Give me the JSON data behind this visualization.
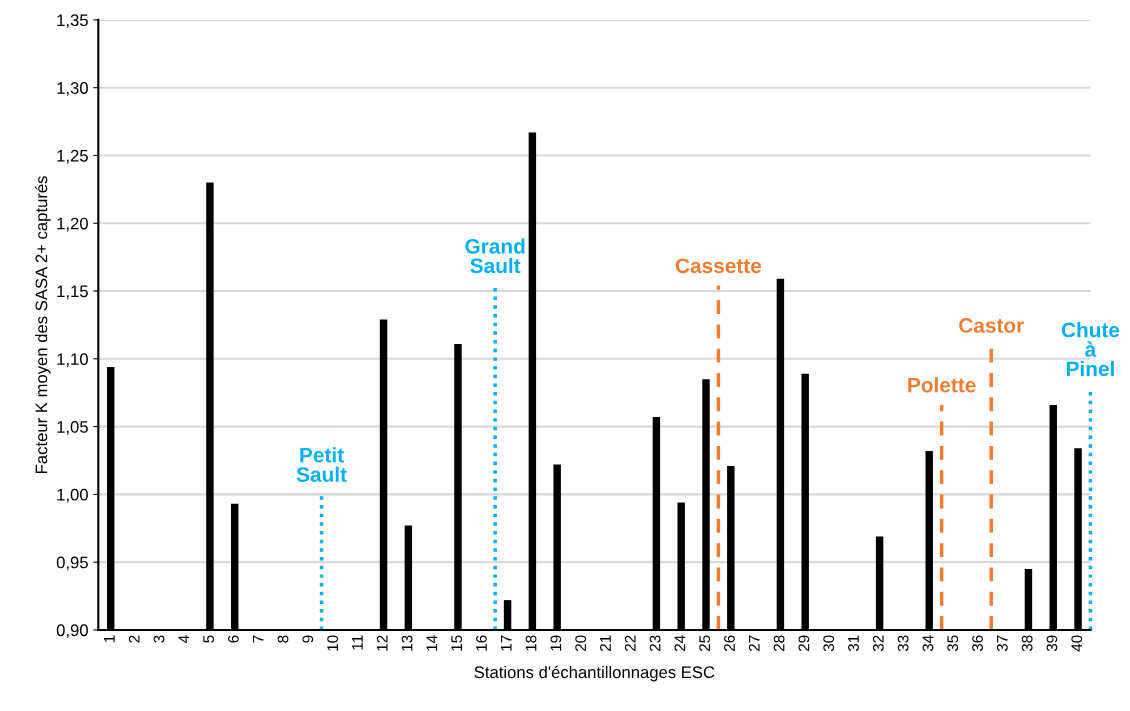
{
  "chart_data": {
    "type": "bar",
    "xlabel": "Stations d'échantillonnages ESC",
    "ylabel": "Facteur K moyen des SASA 2+ capturés",
    "x": [
      1,
      2,
      3,
      4,
      5,
      6,
      7,
      8,
      9,
      10,
      11,
      12,
      13,
      14,
      15,
      16,
      17,
      18,
      19,
      20,
      21,
      22,
      23,
      24,
      25,
      26,
      27,
      28,
      29,
      30,
      31,
      32,
      33,
      34,
      35,
      36,
      37,
      38,
      39,
      40
    ],
    "xlim": [
      0.5,
      40.5
    ],
    "xticks": [
      1,
      2,
      3,
      4,
      5,
      6,
      7,
      8,
      9,
      10,
      11,
      12,
      13,
      14,
      15,
      16,
      17,
      18,
      19,
      20,
      21,
      22,
      23,
      24,
      25,
      26,
      27,
      28,
      29,
      30,
      31,
      32,
      33,
      34,
      35,
      36,
      37,
      38,
      39,
      40
    ],
    "ylim": [
      0.9,
      1.35
    ],
    "yticks": [
      {
        "value": 0.9,
        "label": "0,90"
      },
      {
        "value": 0.95,
        "label": "0,95"
      },
      {
        "value": 1.0,
        "label": "1,00"
      },
      {
        "value": 1.05,
        "label": "1,05"
      },
      {
        "value": 1.1,
        "label": "1,10"
      },
      {
        "value": 1.15,
        "label": "1,15"
      },
      {
        "value": 1.2,
        "label": "1,20"
      },
      {
        "value": 1.25,
        "label": "1,25"
      },
      {
        "value": 1.3,
        "label": "1,30"
      },
      {
        "value": 1.35,
        "label": "1,35"
      }
    ],
    "grid": "y",
    "series": [
      {
        "color": "#000000",
        "values": [
          1.094,
          null,
          null,
          null,
          1.23,
          0.993,
          null,
          null,
          null,
          null,
          null,
          1.129,
          0.977,
          null,
          1.111,
          null,
          0.922,
          1.267,
          1.022,
          null,
          null,
          null,
          1.057,
          0.994,
          1.085,
          1.021,
          null,
          1.159,
          1.089,
          null,
          null,
          0.969,
          null,
          1.032,
          null,
          null,
          null,
          0.945,
          1.066,
          1.034
        ]
      },
      {
        "type": "line",
        "name": "Petit\nSault",
        "color": "#00b0f0",
        "line_style": "dotted",
        "x": [
          9.5,
          9.5
        ],
        "values": [
          0.9,
          1.0
        ]
      },
      {
        "type": "line",
        "name": "Grand\nSault",
        "color": "#00b0f0",
        "line_style": "dotted",
        "x": [
          16.5,
          16.5
        ],
        "values": [
          0.9,
          1.154
        ]
      },
      {
        "type": "line",
        "name": "Cassette",
        "color": "#ed7d31",
        "line_style": "dashed",
        "x": [
          25.5,
          25.5
        ],
        "values": [
          0.9,
          1.154
        ]
      },
      {
        "type": "line",
        "name": "Polette",
        "color": "#ed7d31",
        "line_style": "dashed",
        "x": [
          34.5,
          34.5
        ],
        "values": [
          0.9,
          1.066
        ]
      },
      {
        "type": "line",
        "name": "Castor",
        "color": "#ed7d31",
        "line_style": "dashed",
        "x": [
          36.5,
          36.5
        ],
        "values": [
          0.9,
          1.11
        ]
      },
      {
        "type": "line",
        "name": "Chute\nà\nPinel",
        "color": "#00b0f0",
        "line_style": "dotted",
        "x": [
          40.5,
          40.5
        ],
        "values": [
          0.9,
          1.078
        ]
      }
    ]
  }
}
